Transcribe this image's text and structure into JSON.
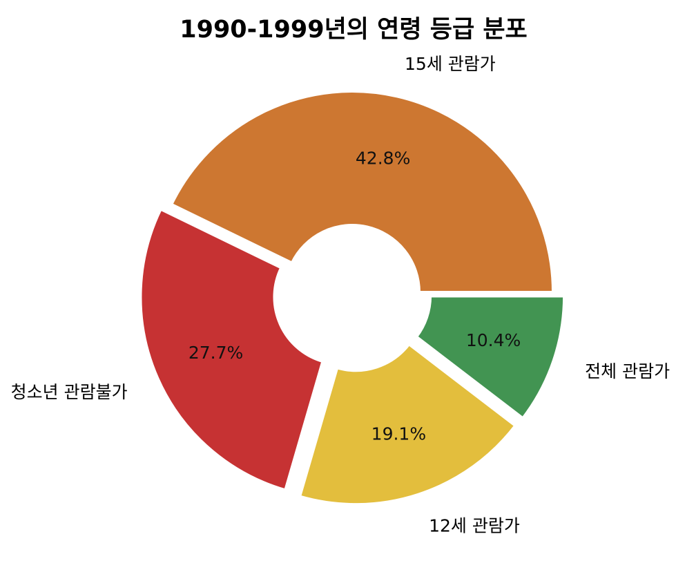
{
  "chart_data": {
    "type": "pie",
    "title": "1990-1999년의 연령 등급 분포",
    "donut": true,
    "start_angle_deg": 0,
    "direction": "counterclockwise",
    "slices": [
      {
        "label": "15세 관람가",
        "value": 42.8,
        "pct_label": "42.8%",
        "color": "#CD7731",
        "explode": 0
      },
      {
        "label": "청소년 관람불가",
        "value": 27.7,
        "pct_label": "27.7%",
        "color": "#C63233",
        "explode": 1
      },
      {
        "label": "12세 관람가",
        "value": 19.1,
        "pct_label": "19.1%",
        "color": "#E3BE3D",
        "explode": 1
      },
      {
        "label": "전체 관람가",
        "value": 10.4,
        "pct_label": "10.4%",
        "color": "#429452",
        "explode": 1
      }
    ]
  }
}
